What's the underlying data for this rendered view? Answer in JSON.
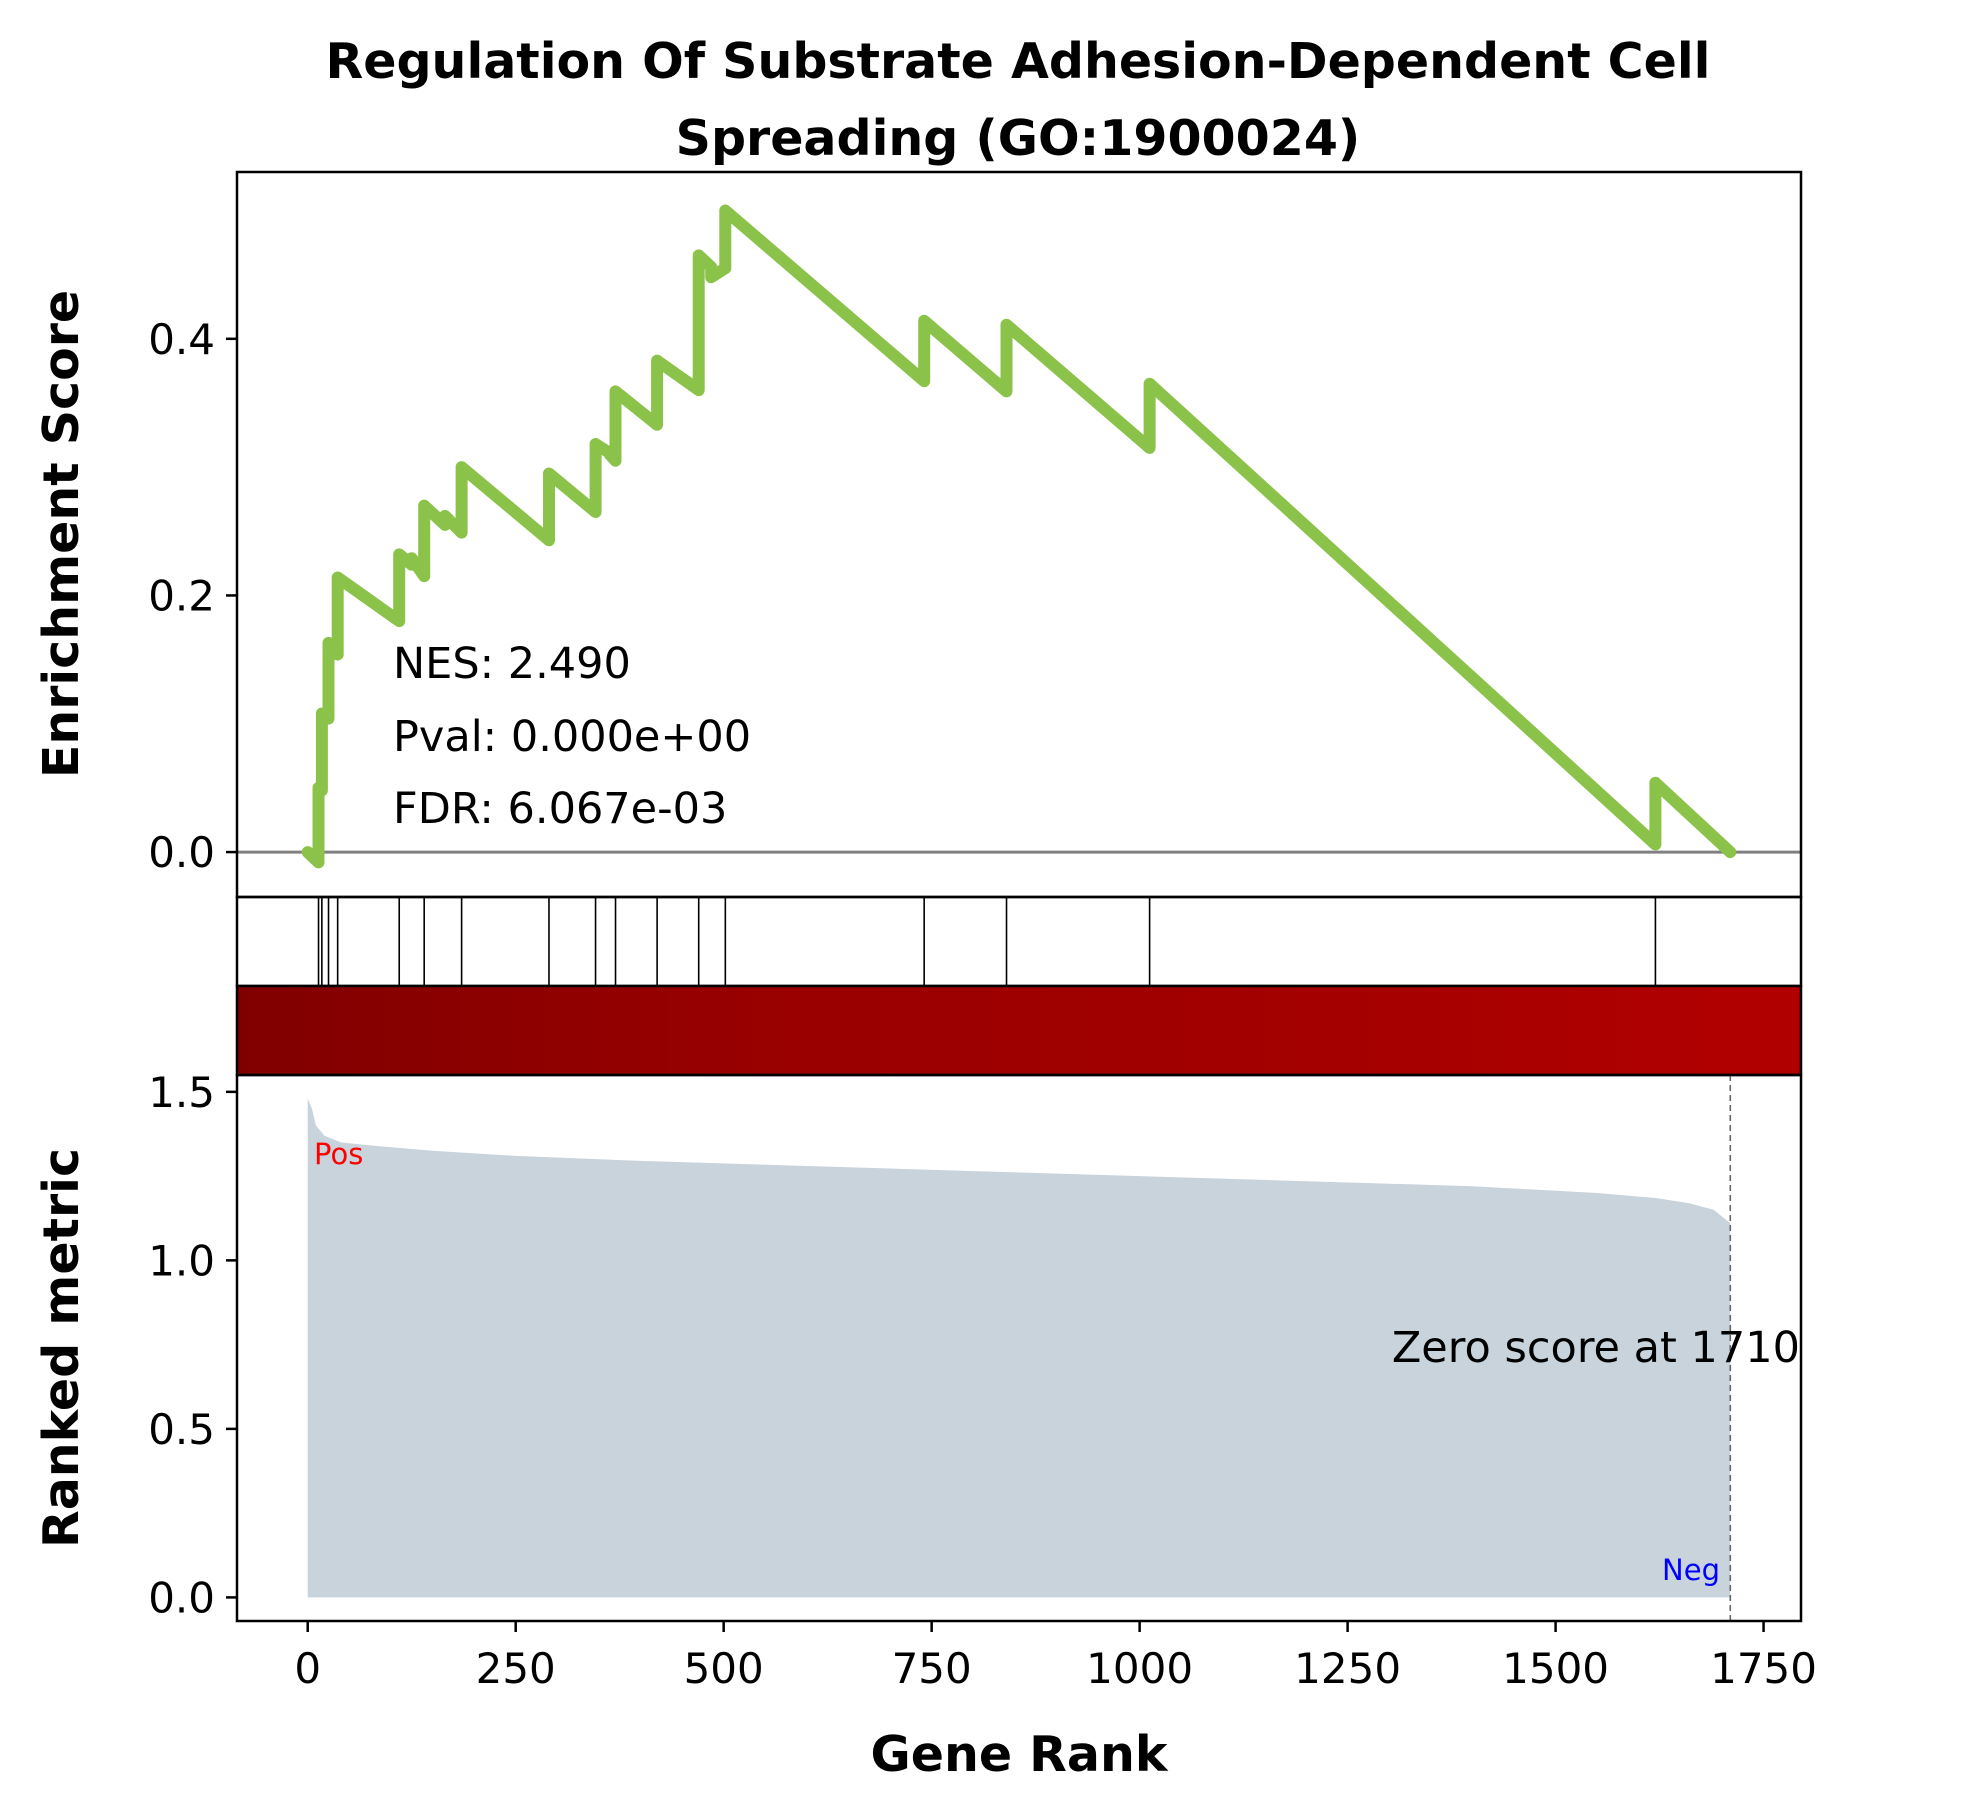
{
  "chart_data": {
    "type": "line",
    "title_lines": [
      "Regulation Of Substrate Adhesion-Dependent Cell",
      "Spreading (GO:1900024)"
    ],
    "xlabel": "Gene Rank",
    "top_panel": {
      "ylabel": "Enrichment Score",
      "yticks": [
        "0.0",
        "0.2",
        "0.4"
      ],
      "ytick_values": [
        0.0,
        0.2,
        0.4
      ],
      "ylim": [
        -0.035,
        0.53
      ],
      "line_color": "#8bc34a",
      "zero_line_color": "#808080",
      "series": [
        {
          "x": [
            0,
            13,
            13,
            17,
            17,
            25,
            25,
            28,
            28,
            36,
            36,
            110,
            110,
            125,
            125,
            140,
            140,
            165,
            165,
            185,
            185,
            290,
            290,
            346,
            346,
            363,
            363,
            370,
            370,
            420,
            420,
            470,
            470,
            485,
            485,
            502,
            502,
            741,
            741,
            840,
            840,
            1012,
            1012,
            1620,
            1620,
            1710
          ],
          "y": [
            0.0,
            -0.008,
            0.05,
            0.048,
            0.108,
            0.104,
            0.163,
            0.16,
            0.162,
            0.154,
            0.214,
            0.18,
            0.232,
            0.224,
            0.229,
            0.215,
            0.27,
            0.255,
            0.262,
            0.249,
            0.3,
            0.243,
            0.295,
            0.265,
            0.318,
            0.311,
            0.31,
            0.305,
            0.359,
            0.333,
            0.383,
            0.36,
            0.465,
            0.456,
            0.448,
            0.455,
            0.5,
            0.367,
            0.414,
            0.359,
            0.411,
            0.315,
            0.365,
            0.006,
            0.054,
            0.0
          ]
        }
      ],
      "stats": [
        "NES: 2.490",
        "Pval: 0.000e+00",
        "FDR: 6.067e-03"
      ]
    },
    "hit_positions": [
      13,
      17,
      25,
      36,
      110,
      140,
      185,
      290,
      346,
      370,
      420,
      470,
      502,
      741,
      840,
      1012,
      1620
    ],
    "heatmap": {
      "colors": [
        "#800000",
        "#990000",
        "#a30000",
        "#b20000"
      ]
    },
    "bottom_panel": {
      "ylabel": "Ranked metric",
      "yticks": [
        "0.0",
        "0.5",
        "1.0",
        "1.5"
      ],
      "ytick_values": [
        0.0,
        0.5,
        1.0,
        1.5
      ],
      "ylim": [
        -0.07,
        1.55
      ],
      "fill_color": "#c8d3dc",
      "x": [
        0,
        5,
        10,
        20,
        40,
        80,
        150,
        250,
        400,
        600,
        800,
        1000,
        1200,
        1400,
        1550,
        1620,
        1660,
        1690,
        1705,
        1710
      ],
      "y": [
        1.48,
        1.45,
        1.4,
        1.37,
        1.35,
        1.34,
        1.325,
        1.31,
        1.295,
        1.28,
        1.265,
        1.25,
        1.235,
        1.22,
        1.2,
        1.185,
        1.17,
        1.15,
        1.12,
        1.11
      ],
      "pos_label": "Pos",
      "neg_label": "Neg",
      "pos_color": "#ff0000",
      "neg_color": "#0000ff",
      "zero_score_label": "Zero score at 1710",
      "zero_score_x": 1710
    },
    "xticks": [
      "0",
      "250",
      "500",
      "750",
      "1000",
      "1250",
      "1500",
      "1750"
    ],
    "xtick_values": [
      0,
      250,
      500,
      750,
      1000,
      1250,
      1500,
      1750
    ],
    "xlim": [
      -85,
      1795
    ]
  }
}
